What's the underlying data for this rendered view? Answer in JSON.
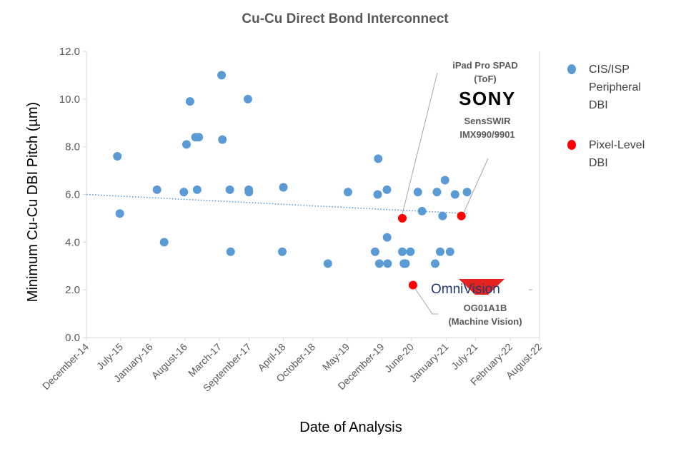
{
  "chart_data": {
    "type": "scatter",
    "title": "Cu-Cu Direct Bond Interconnect",
    "xlabel": "Date of Analysis",
    "ylabel": "Minimum Cu-Cu DBI Pitch (µm)",
    "ylim": [
      0,
      12
    ],
    "yticks": [
      "0.0",
      "2.0",
      "4.0",
      "6.0",
      "8.0",
      "10.0",
      "12.0"
    ],
    "xlim": [
      "2014-12-01",
      "2022-08-01"
    ],
    "xticks": [
      {
        "label": "December-14",
        "date": "2014-12-01"
      },
      {
        "label": "July-15",
        "date": "2015-07-01"
      },
      {
        "label": "January-16",
        "date": "2016-01-01"
      },
      {
        "label": "August-16",
        "date": "2016-08-01"
      },
      {
        "label": "March-17",
        "date": "2017-03-01"
      },
      {
        "label": "September-17",
        "date": "2017-09-01"
      },
      {
        "label": "April-18",
        "date": "2018-04-01"
      },
      {
        "label": "October-18",
        "date": "2018-10-01"
      },
      {
        "label": "May-19",
        "date": "2019-05-01"
      },
      {
        "label": "December-19",
        "date": "2019-12-01"
      },
      {
        "label": "June-20",
        "date": "2020-06-01"
      },
      {
        "label": "January-21",
        "date": "2021-01-01"
      },
      {
        "label": "July-21",
        "date": "2021-07-01"
      },
      {
        "label": "February-22",
        "date": "2022-02-01"
      },
      {
        "label": "August-22",
        "date": "2022-08-01"
      }
    ],
    "grid": false,
    "legend_position": "right",
    "series": [
      {
        "name": "CIS/ISP Peripheral DBI",
        "color": "#5b9bd5",
        "points": [
          {
            "x": "2015-06-10",
            "y": 7.6
          },
          {
            "x": "2015-06-25",
            "y": 5.2
          },
          {
            "x": "2016-02-10",
            "y": 6.2
          },
          {
            "x": "2016-03-25",
            "y": 4.0
          },
          {
            "x": "2016-07-25",
            "y": 6.1
          },
          {
            "x": "2016-08-10",
            "y": 8.1
          },
          {
            "x": "2016-09-01",
            "y": 9.9
          },
          {
            "x": "2016-10-05",
            "y": 8.4
          },
          {
            "x": "2016-10-15",
            "y": 6.2
          },
          {
            "x": "2016-10-25",
            "y": 8.4
          },
          {
            "x": "2017-03-15",
            "y": 11.0
          },
          {
            "x": "2017-03-20",
            "y": 8.3
          },
          {
            "x": "2017-05-05",
            "y": 6.2
          },
          {
            "x": "2017-05-10",
            "y": 3.6
          },
          {
            "x": "2017-08-25",
            "y": 10.0
          },
          {
            "x": "2017-08-30",
            "y": 6.2
          },
          {
            "x": "2017-08-31",
            "y": 6.1
          },
          {
            "x": "2018-03-25",
            "y": 3.6
          },
          {
            "x": "2018-04-01",
            "y": 6.3
          },
          {
            "x": "2019-01-01",
            "y": 3.1
          },
          {
            "x": "2019-05-05",
            "y": 6.1
          },
          {
            "x": "2019-10-20",
            "y": 3.6
          },
          {
            "x": "2019-11-05",
            "y": 6.0
          },
          {
            "x": "2019-11-08",
            "y": 7.5
          },
          {
            "x": "2019-11-15",
            "y": 3.1
          },
          {
            "x": "2020-01-01",
            "y": 6.2
          },
          {
            "x": "2020-01-02",
            "y": 4.2
          },
          {
            "x": "2020-01-05",
            "y": 3.1
          },
          {
            "x": "2020-04-05",
            "y": 3.6
          },
          {
            "x": "2020-04-15",
            "y": 3.1
          },
          {
            "x": "2020-04-25",
            "y": 3.1
          },
          {
            "x": "2020-05-25",
            "y": 3.6
          },
          {
            "x": "2020-07-10",
            "y": 6.1
          },
          {
            "x": "2020-08-05",
            "y": 5.3
          },
          {
            "x": "2020-10-25",
            "y": 3.1
          },
          {
            "x": "2020-11-05",
            "y": 6.1
          },
          {
            "x": "2020-11-25",
            "y": 3.6
          },
          {
            "x": "2020-12-10",
            "y": 5.1
          },
          {
            "x": "2020-12-25",
            "y": 6.6
          },
          {
            "x": "2021-01-25",
            "y": 3.6
          },
          {
            "x": "2021-02-25",
            "y": 6.0
          },
          {
            "x": "2021-05-10",
            "y": 6.1
          }
        ]
      },
      {
        "name": "Pixel-Level DBI",
        "color": "#ff0000",
        "points": [
          {
            "x": "2020-04-05",
            "y": 5.0
          },
          {
            "x": "2020-06-10",
            "y": 2.2
          },
          {
            "x": "2021-04-05",
            "y": 5.1
          }
        ]
      }
    ],
    "trendline": {
      "x": [
        "2014-12-01",
        "2021-05-10"
      ],
      "y": [
        6.0,
        5.2
      ],
      "color": "#5b9bd5",
      "style": "dotted"
    },
    "legend": [
      {
        "lines": [
          "CIS/ISP",
          "Peripheral",
          "DBI"
        ],
        "color": "#5b9bd5"
      },
      {
        "lines": [
          "Pixel-Level",
          "DBI"
        ],
        "color": "#ff0000"
      }
    ],
    "annotations": {
      "ipad": {
        "lines": [
          "iPad Pro SPAD",
          "(ToF)"
        ],
        "target": {
          "x": "2020-04-05",
          "y": 5.0
        }
      },
      "sony_logo": {
        "text": "SONY"
      },
      "sensswir": {
        "lines": [
          "SensSWIR",
          "IMX990/9901"
        ],
        "target": {
          "x": "2021-04-05",
          "y": 5.1
        }
      },
      "omnivision_logo": {
        "text": "OmniVision"
      },
      "og01": {
        "lines": [
          "OG01A1B",
          "(Machine Vision)"
        ],
        "target": {
          "x": "2020-06-10",
          "y": 2.2
        }
      }
    }
  }
}
